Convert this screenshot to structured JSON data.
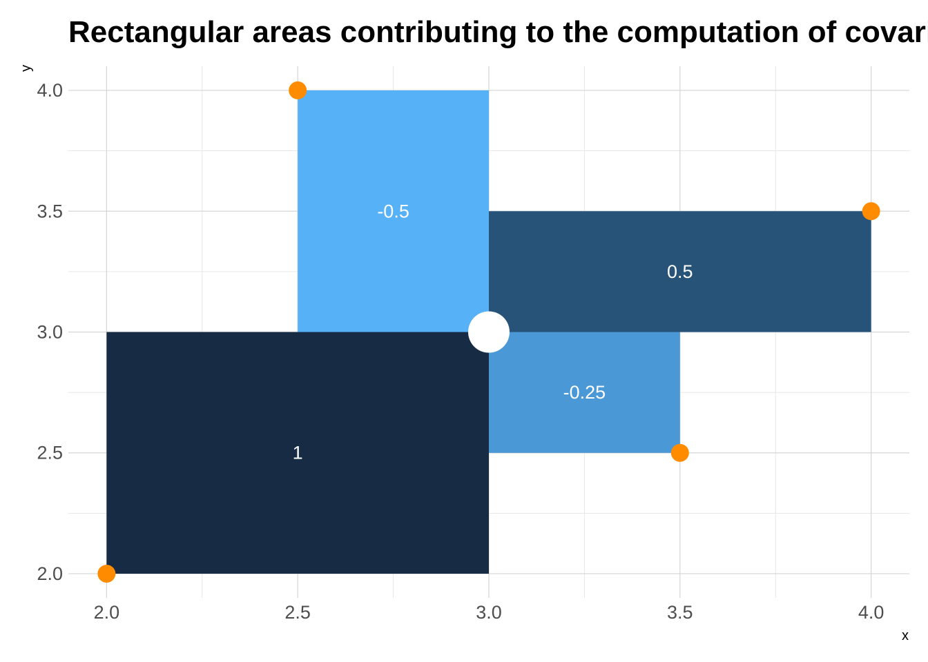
{
  "chart_data": {
    "type": "rect",
    "title": "Rectangular areas contributing to the computation of covariance",
    "xlabel": "x",
    "ylabel": "y",
    "xlim": [
      1.9,
      4.1
    ],
    "ylim": [
      1.9,
      4.1
    ],
    "x_ticks": [
      {
        "value": 2.0,
        "label": "2.0"
      },
      {
        "value": 2.5,
        "label": "2.5"
      },
      {
        "value": 3.0,
        "label": "3.0"
      },
      {
        "value": 3.5,
        "label": "3.5"
      },
      {
        "value": 4.0,
        "label": "4.0"
      }
    ],
    "y_ticks": [
      {
        "value": 2.0,
        "label": "2.0"
      },
      {
        "value": 2.5,
        "label": "2.5"
      },
      {
        "value": 3.0,
        "label": "3.0"
      },
      {
        "value": 3.5,
        "label": "3.5"
      },
      {
        "value": 4.0,
        "label": "4.0"
      }
    ],
    "x_minor": [
      2.25,
      2.75,
      3.25,
      3.75
    ],
    "y_minor": [
      2.25,
      2.75,
      3.25,
      3.75
    ],
    "grid": true,
    "mean": {
      "x": 3.0,
      "y": 3.0,
      "color": "#ffffff"
    },
    "rectangles": [
      {
        "x0": 2.0,
        "x1": 3.0,
        "y0": 2.0,
        "y1": 3.0,
        "value": 1,
        "label": "1",
        "color": "#172c44"
      },
      {
        "x0": 2.5,
        "x1": 3.0,
        "y0": 3.0,
        "y1": 4.0,
        "value": -0.5,
        "label": "-0.5",
        "color": "#56b1f7"
      },
      {
        "x0": 3.0,
        "x1": 4.0,
        "y0": 3.0,
        "y1": 3.5,
        "value": 0.5,
        "label": "0.5",
        "color": "#285378"
      },
      {
        "x0": 3.0,
        "x1": 3.5,
        "y0": 2.5,
        "y1": 3.0,
        "value": -0.25,
        "label": "-0.25",
        "color": "#4a98d6"
      }
    ],
    "points": [
      {
        "x": 2.0,
        "y": 2.0
      },
      {
        "x": 2.5,
        "y": 4.0
      },
      {
        "x": 3.5,
        "y": 2.5
      },
      {
        "x": 4.0,
        "y": 3.5
      }
    ],
    "point_color": "#ff8c00"
  }
}
